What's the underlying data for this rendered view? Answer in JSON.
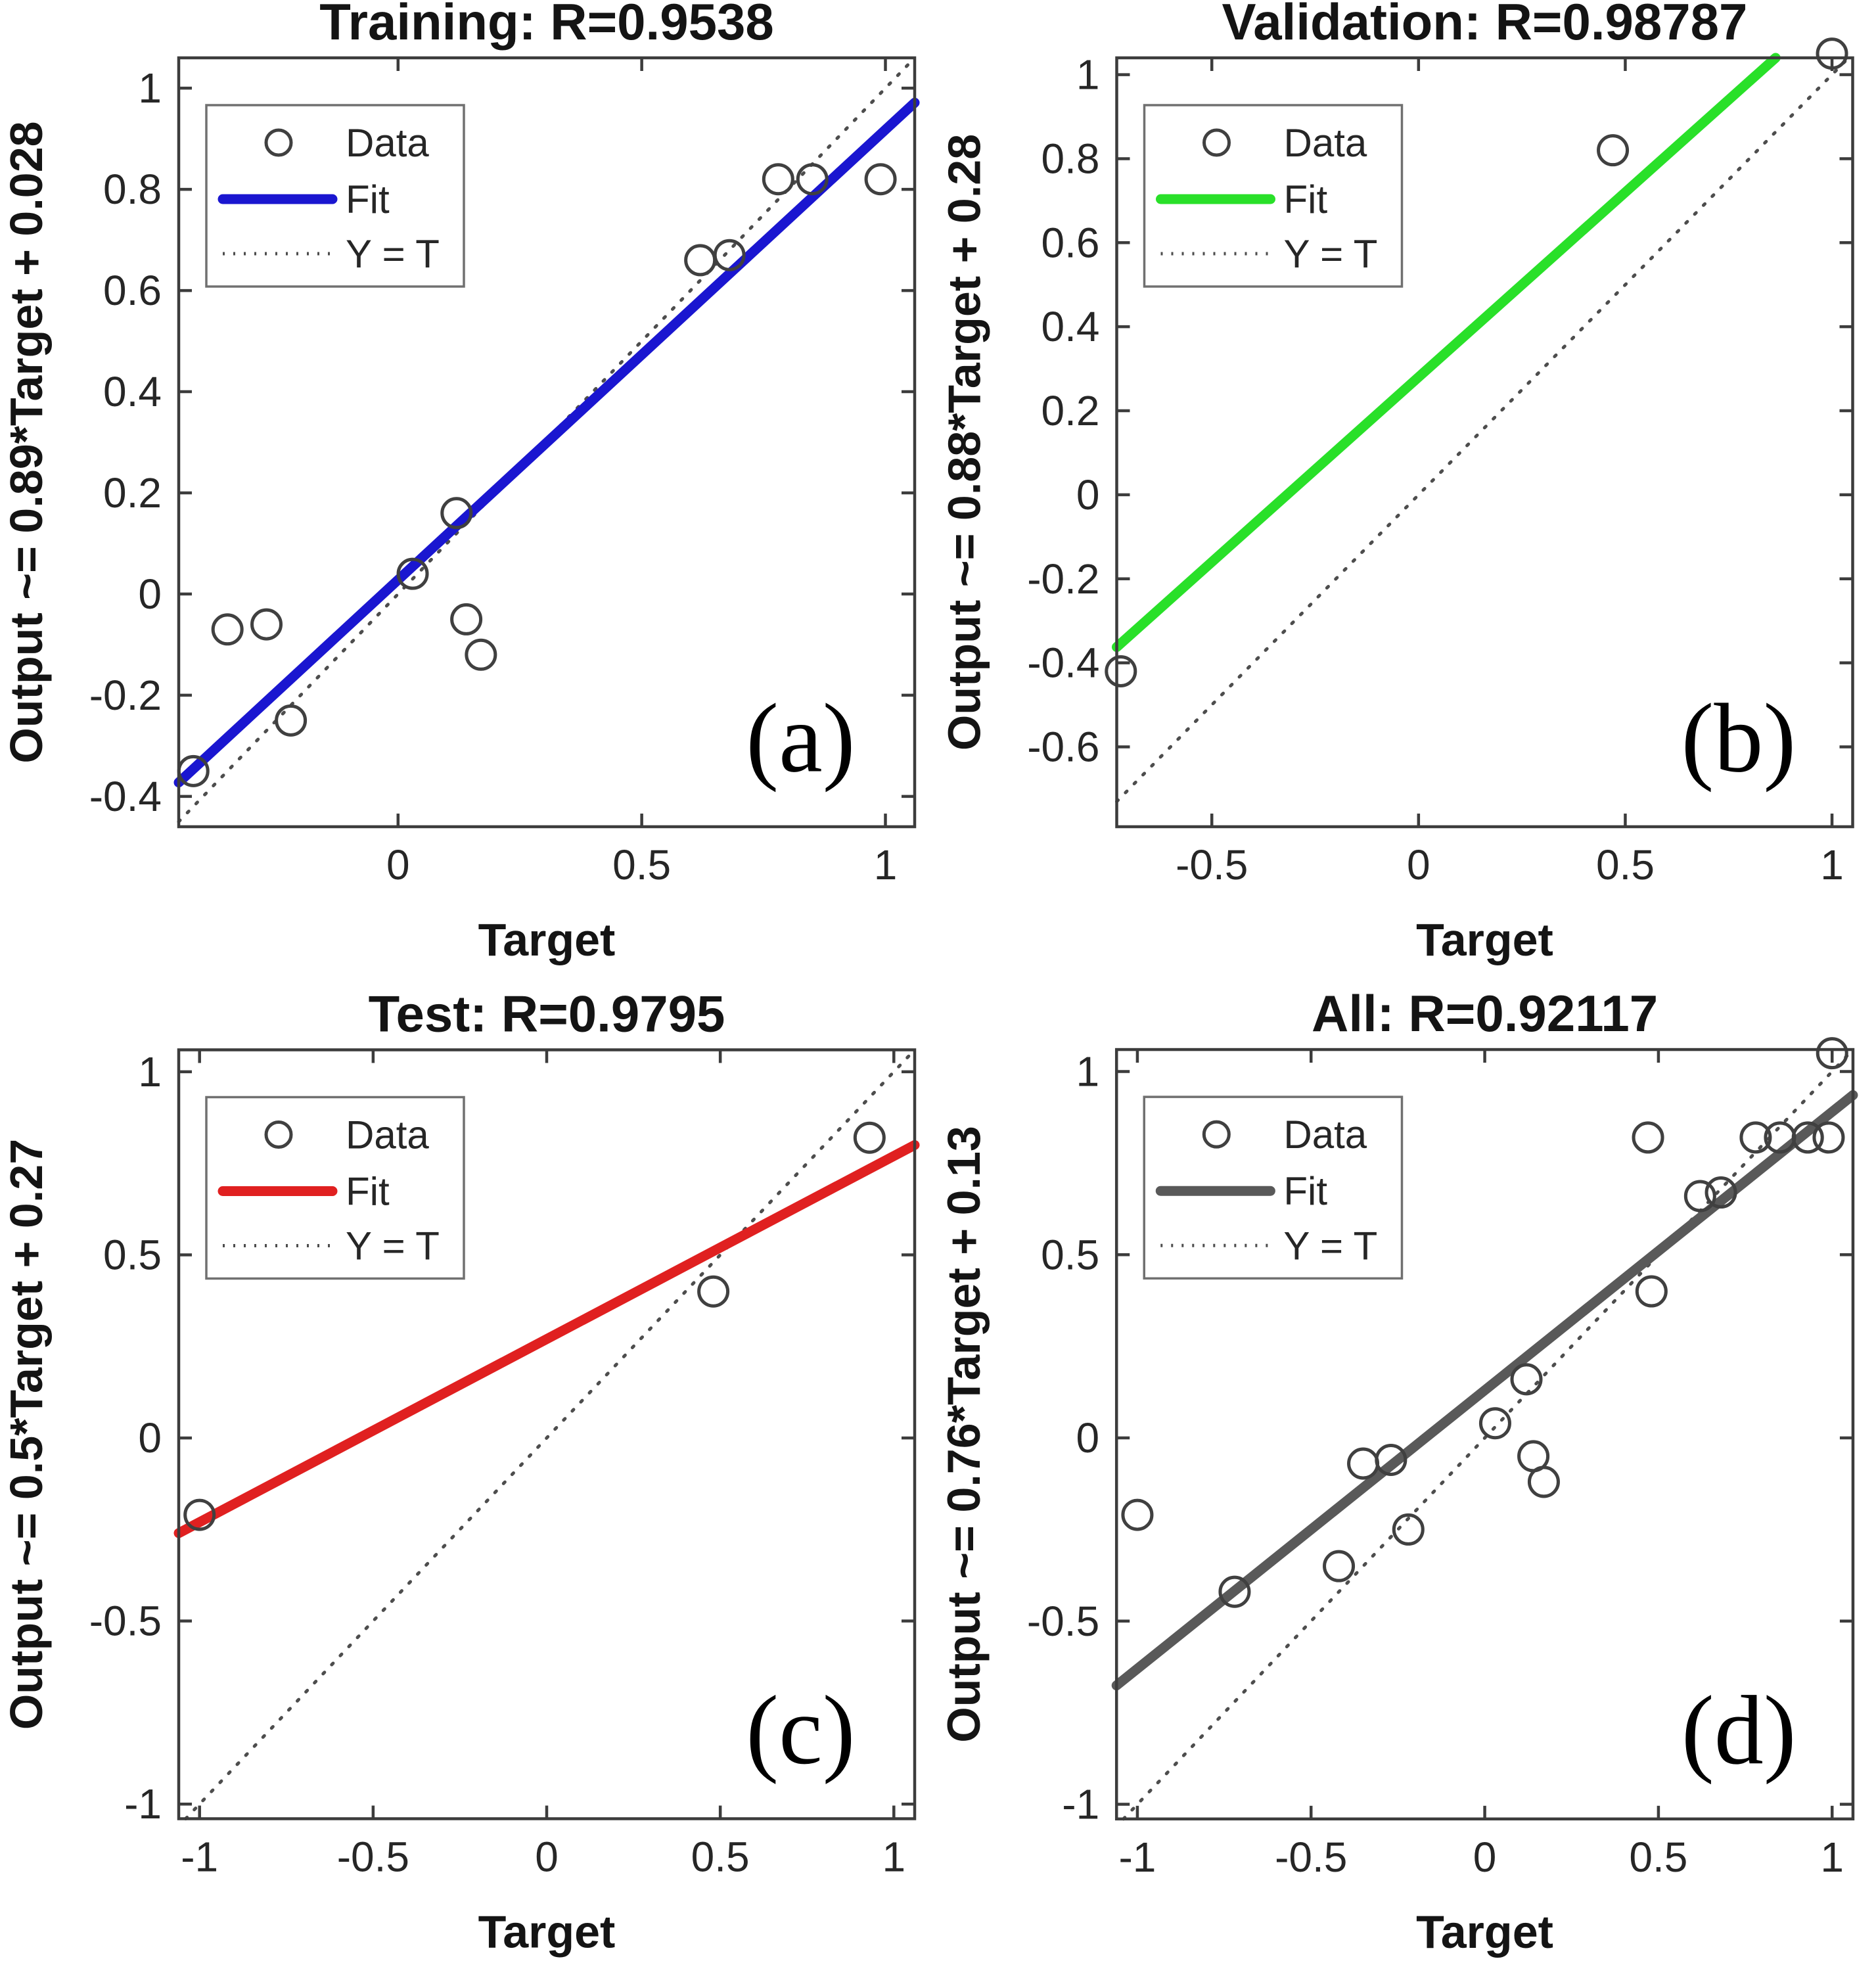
{
  "figure": {
    "background": "#ffffff",
    "xlabel": "Target",
    "legend": {
      "data_label": "Data",
      "fit_label": "Fit",
      "yt_label": "Y = T"
    },
    "colors": {
      "axis": "#3c3c3c",
      "tick_text": "#262626",
      "title_text": "#141414",
      "marker": "#404040",
      "identity_line": "#4d4d4d",
      "legend_border": "#707070"
    }
  },
  "chart_data": [
    {
      "type": "scatter",
      "id": "training",
      "panel_letter": "(a)",
      "title": "Training: R=0.9538",
      "r_value": 0.9538,
      "ylabel": "Output ~= 0.89*Target + 0.028",
      "xlabel": "Target",
      "fit": {
        "slope": 0.89,
        "intercept": 0.028
      },
      "fit_color": "#1a16d0",
      "xlim": [
        -0.45,
        1.06
      ],
      "ylim": [
        -0.46,
        1.06
      ],
      "xticks": [
        0,
        0.5,
        1
      ],
      "yticks": [
        1,
        0.8,
        0.6,
        0.4,
        0.2,
        0,
        -0.2,
        -0.4
      ],
      "grid": false,
      "legend_position": "top-left",
      "points": [
        [
          -0.42,
          -0.35
        ],
        [
          -0.35,
          -0.07
        ],
        [
          -0.27,
          -0.06
        ],
        [
          -0.22,
          -0.25
        ],
        [
          0.03,
          0.04
        ],
        [
          0.12,
          0.16
        ],
        [
          0.14,
          -0.05
        ],
        [
          0.17,
          -0.12
        ],
        [
          0.62,
          0.66
        ],
        [
          0.68,
          0.67
        ],
        [
          0.78,
          0.82
        ],
        [
          0.85,
          0.82
        ],
        [
          0.99,
          0.82
        ]
      ]
    },
    {
      "type": "scatter",
      "id": "validation",
      "panel_letter": "(b)",
      "title": "Validation: R=0.98787",
      "r_value": 0.98787,
      "ylabel": "Output ~= 0.88*Target + 0.28",
      "xlabel": "Target",
      "fit": {
        "slope": 0.88,
        "intercept": 0.28
      },
      "fit_color": "#29e029",
      "xlim": [
        -0.73,
        1.05
      ],
      "ylim": [
        -0.79,
        1.04
      ],
      "xticks": [
        -0.5,
        0,
        0.5,
        1
      ],
      "yticks": [
        1,
        0.8,
        0.6,
        0.4,
        0.2,
        0,
        -0.2,
        -0.4,
        -0.6
      ],
      "grid": false,
      "legend_position": "top-left",
      "points": [
        [
          -0.72,
          -0.42
        ],
        [
          0.47,
          0.82
        ],
        [
          1.0,
          1.05
        ]
      ]
    },
    {
      "type": "scatter",
      "id": "test",
      "panel_letter": "(c)",
      "title": "Test: R=0.9795",
      "r_value": 0.9795,
      "ylabel": "Output ~= 0.5*Target + 0.27",
      "xlabel": "Target",
      "fit": {
        "slope": 0.5,
        "intercept": 0.27
      },
      "fit_color": "#e02020",
      "xlim": [
        -1.06,
        1.06
      ],
      "ylim": [
        -1.04,
        1.06
      ],
      "xticks": [
        -1,
        -0.5,
        0,
        0.5,
        1
      ],
      "yticks": [
        1,
        0.5,
        0,
        -0.5,
        -1
      ],
      "grid": false,
      "legend_position": "top-left",
      "points": [
        [
          -1.0,
          -0.21
        ],
        [
          0.48,
          0.4
        ],
        [
          0.93,
          0.82
        ]
      ]
    },
    {
      "type": "scatter",
      "id": "all",
      "panel_letter": "(d)",
      "title": "All: R=0.92117",
      "r_value": 0.92117,
      "ylabel": "Output ~= 0.76*Target + 0.13",
      "xlabel": "Target",
      "fit": {
        "slope": 0.76,
        "intercept": 0.13
      },
      "fit_color": "#595959",
      "xlim": [
        -1.06,
        1.06
      ],
      "ylim": [
        -1.04,
        1.06
      ],
      "xticks": [
        -1,
        -0.5,
        0,
        0.5,
        1
      ],
      "yticks": [
        1,
        0.5,
        0,
        -0.5,
        -1
      ],
      "grid": false,
      "legend_position": "top-left",
      "points": [
        [
          -0.42,
          -0.35
        ],
        [
          -0.35,
          -0.07
        ],
        [
          -0.27,
          -0.06
        ],
        [
          -0.22,
          -0.25
        ],
        [
          0.03,
          0.04
        ],
        [
          0.12,
          0.16
        ],
        [
          0.14,
          -0.05
        ],
        [
          0.17,
          -0.12
        ],
        [
          0.62,
          0.66
        ],
        [
          0.68,
          0.67
        ],
        [
          0.78,
          0.82
        ],
        [
          0.85,
          0.82
        ],
        [
          0.99,
          0.82
        ],
        [
          -0.72,
          -0.42
        ],
        [
          0.47,
          0.82
        ],
        [
          1.0,
          1.05
        ],
        [
          -1.0,
          -0.21
        ],
        [
          0.48,
          0.4
        ],
        [
          0.93,
          0.82
        ]
      ]
    }
  ]
}
